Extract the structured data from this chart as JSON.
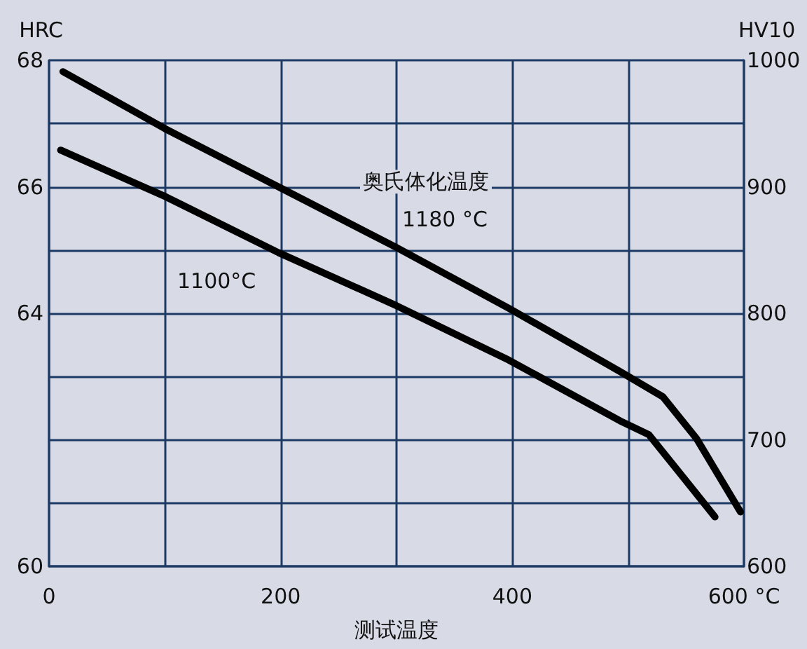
{
  "chart_data": {
    "type": "line",
    "xlabel": "测试温度",
    "ylabel": "HRC",
    "y2label": "HV10",
    "annotations": [
      "奥氏体化温度"
    ],
    "xlim": [
      0,
      600
    ],
    "xticks": [
      0,
      {
        "value": 100,
        "label": null
      },
      200,
      {
        "value": 300,
        "label": null
      },
      400,
      {
        "value": 500,
        "label": null
      },
      {
        "value": 600,
        "label": "600 °C"
      }
    ],
    "ylim": [
      60,
      68
    ],
    "yticks": [
      60,
      {
        "value": 61,
        "label": null
      },
      {
        "value": 62,
        "label": null
      },
      {
        "value": 63,
        "label": null
      },
      64,
      {
        "value": 65,
        "label": null
      },
      66,
      {
        "value": 67,
        "label": null
      },
      68
    ],
    "y2lim": [
      600,
      1000
    ],
    "y2ticks": [
      600,
      700,
      800,
      900,
      1000
    ],
    "grid": true,
    "legend": false,
    "marker": "none",
    "line_style": "solid",
    "series": [
      {
        "name": "1180 °C",
        "color": "#000000",
        "axis": "y2",
        "x": [
          12,
          100,
          198,
          300,
          397,
          493,
          530,
          559,
          597
        ],
        "values": [
          991,
          946,
          900,
          852,
          804,
          754,
          734,
          701,
          643
        ]
      },
      {
        "name": "1100°C",
        "color": "#000000",
        "axis": "y2",
        "x": [
          10,
          101,
          198,
          300,
          397,
          493,
          518,
          547,
          575
        ],
        "values": [
          929,
          892,
          848,
          806,
          763,
          715,
          704,
          671,
          639
        ]
      }
    ]
  }
}
